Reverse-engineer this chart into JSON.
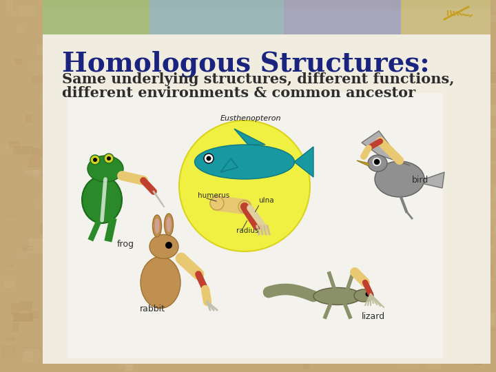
{
  "title": "Homologous Structures:",
  "subtitle_line1": "Same underlying structures, different functions,",
  "subtitle_line2": "different environments & common ancestor",
  "title_color": "#1a237e",
  "subtitle_color": "#2d2d2d",
  "title_fontsize": 28,
  "subtitle_fontsize": 15,
  "bg_outer_color": "#c8a878",
  "slide_bg": "#f0ede0",
  "title_font": "serif",
  "subtitle_font": "serif",
  "bone_color": "#e8c870",
  "bone_red": "#c04030",
  "fish_color": "#20a0a0",
  "fish_label": "Eusthenopteron",
  "circle_color": "#f5f030",
  "frog_color": "#3a8c3a",
  "rabbit_color": "#c89050",
  "bird_color": "#909090",
  "lizard_color": "#909870",
  "label_color": "#2d2d2d",
  "label_fontsize": 9
}
